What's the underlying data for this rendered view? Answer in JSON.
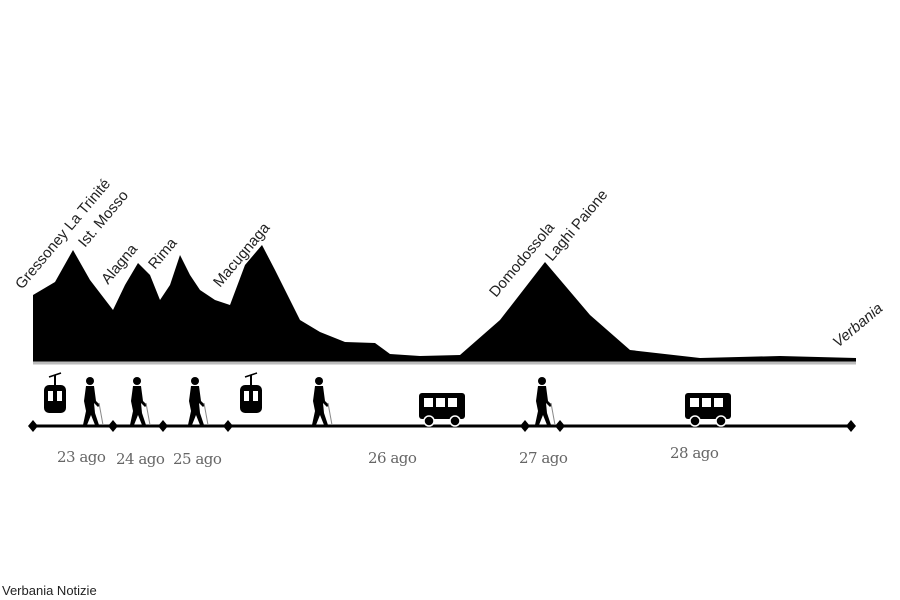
{
  "places": [
    "Gressoney La Trinité",
    "Ist. Mosso",
    "Alagna",
    "Rima",
    "Macugnaga",
    "Domodossola",
    "Laghi Paione",
    "Verbania"
  ],
  "dates": [
    "23 ago",
    "24 ago",
    "25 ago",
    "26 ago",
    "27 ago",
    "28 ago"
  ],
  "transport": [
    "cablecar",
    "hiker",
    "hiker",
    "hiker",
    "cablecar",
    "hiker",
    "bus",
    "hiker",
    "bus"
  ],
  "credit": "Verbania Notizie",
  "colors": {
    "profile": "#000000",
    "dates": "#666666"
  }
}
